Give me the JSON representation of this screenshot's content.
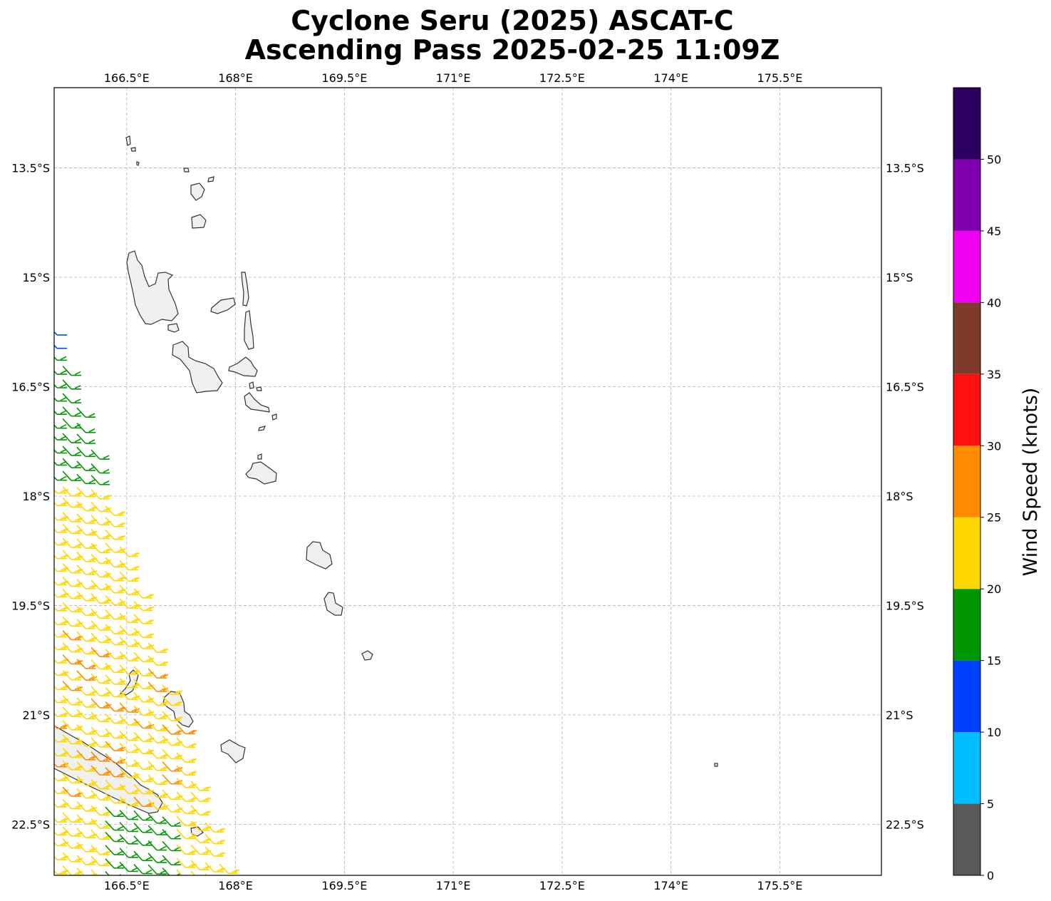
{
  "title": {
    "line1": "Cyclone Seru (2025) ASCAT-C",
    "line2": "Ascending Pass 2025-02-25 11:09Z"
  },
  "map": {
    "lon_range": [
      165.5,
      176.9
    ],
    "lat_range": [
      -23.2,
      -12.4
    ],
    "lon_ticks": [
      "166.5°E",
      "168°E",
      "169.5°E",
      "171°E",
      "172.5°E",
      "174°E",
      "175.5°E"
    ],
    "lat_ticks": [
      "13.5°S",
      "15°S",
      "16.5°S",
      "18°S",
      "19.5°S",
      "21°S",
      "22.5°S"
    ],
    "grid": true
  },
  "colorbar": {
    "label": "Wind Speed (knots)",
    "ticks": [
      "0",
      "5",
      "10",
      "15",
      "20",
      "25",
      "30",
      "35",
      "40",
      "45",
      "50"
    ],
    "bins": [
      {
        "min": 0,
        "max": 5,
        "color": "#595959"
      },
      {
        "min": 5,
        "max": 10,
        "color": "#00bfff"
      },
      {
        "min": 10,
        "max": 15,
        "color": "#0040ff"
      },
      {
        "min": 15,
        "max": 20,
        "color": "#009600"
      },
      {
        "min": 20,
        "max": 25,
        "color": "#ffd700"
      },
      {
        "min": 25,
        "max": 30,
        "color": "#ff8c00"
      },
      {
        "min": 30,
        "max": 35,
        "color": "#ff1010"
      },
      {
        "min": 35,
        "max": 40,
        "color": "#7f3b2a"
      },
      {
        "min": 40,
        "max": 45,
        "color": "#f000f0"
      },
      {
        "min": 45,
        "max": 50,
        "color": "#8000b0"
      },
      {
        "min": 50,
        "max": 55,
        "color": "#2c0060"
      }
    ]
  }
}
